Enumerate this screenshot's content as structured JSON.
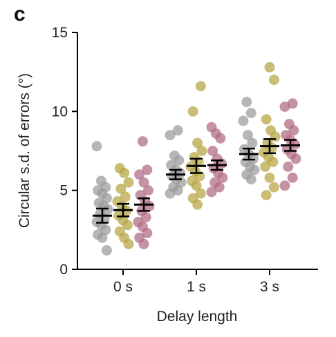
{
  "panel_label": "c",
  "chart_data": {
    "type": "scatter",
    "title": "",
    "xlabel": "Delay length",
    "ylabel": "Circular s.d. of errors (°)",
    "categories": [
      "0 s",
      "1 s",
      "3 s"
    ],
    "ylim": [
      0,
      15
    ],
    "yticks": [
      0,
      5,
      10,
      15
    ],
    "grid": false,
    "colors": {
      "gray": "#9a9a9a",
      "olive": "#b5a542",
      "mauve": "#b06a84",
      "error_bar": "#000000"
    },
    "series": [
      {
        "color": "#9a9a9a",
        "points": [
          [
            7.8,
            5.6,
            5.2,
            5.0,
            4.8,
            4.5,
            4.2,
            4.0,
            3.8,
            3.5,
            3.2,
            3.0,
            2.8,
            2.5,
            2.2,
            2.0,
            1.2
          ],
          [
            8.8,
            8.5,
            7.2,
            6.9,
            6.6,
            6.3,
            6.1,
            5.9,
            5.7,
            5.5,
            5.2,
            5.0,
            4.8
          ],
          [
            10.6,
            9.9,
            9.4,
            8.5,
            8.0,
            7.6,
            7.3,
            7.0,
            6.8,
            6.5,
            6.3,
            6.0,
            5.7
          ]
        ],
        "means": [
          3.4,
          6.0,
          7.3
        ],
        "sems": [
          0.45,
          0.3,
          0.35
        ]
      },
      {
        "color": "#b5a542",
        "points": [
          [
            6.4,
            6.1,
            5.5,
            5.1,
            4.6,
            4.3,
            4.0,
            3.7,
            3.4,
            3.1,
            2.8,
            2.4,
            2.0,
            1.6
          ],
          [
            11.6,
            10.0,
            8.0,
            7.5,
            7.1,
            6.8,
            6.5,
            6.2,
            5.9,
            5.6,
            5.3,
            4.8,
            4.5,
            4.1
          ],
          [
            12.8,
            12.0,
            9.5,
            8.8,
            8.4,
            8.0,
            7.7,
            7.4,
            7.1,
            6.8,
            6.5,
            5.8,
            5.2,
            4.7
          ]
        ],
        "means": [
          3.75,
          6.55,
          7.8
        ],
        "sems": [
          0.4,
          0.45,
          0.45
        ]
      },
      {
        "color": "#b06a84",
        "points": [
          [
            8.1,
            6.3,
            6.0,
            5.5,
            5.0,
            4.7,
            4.3,
            4.0,
            3.7,
            3.3,
            3.0,
            2.7,
            2.3,
            2.0,
            1.6
          ],
          [
            9.0,
            8.6,
            8.3,
            7.5,
            7.0,
            6.7,
            6.4,
            6.1,
            5.8,
            5.5,
            5.2,
            4.9
          ],
          [
            10.5,
            10.3,
            9.2,
            8.8,
            8.5,
            8.2,
            7.9,
            7.6,
            7.3,
            7.0,
            6.5,
            5.8,
            5.3
          ]
        ],
        "means": [
          4.1,
          6.6,
          7.85
        ],
        "sems": [
          0.4,
          0.3,
          0.35
        ]
      }
    ]
  }
}
